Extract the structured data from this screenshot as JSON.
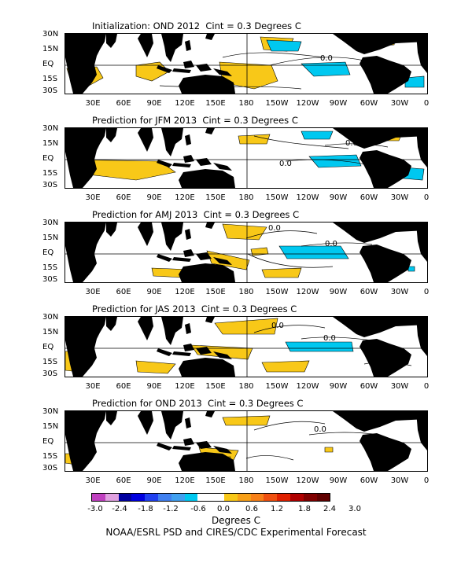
{
  "panels": [
    {
      "title": "Initialization: OND 2012  Cint = 0.3 Degrees C",
      "contour_labels": [
        "0.0"
      ],
      "variant": 0
    },
    {
      "title": "Prediction for JFM 2013  Cint = 0.3 Degrees C",
      "contour_labels": [
        "0.0",
        "0.0"
      ],
      "variant": 1
    },
    {
      "title": "Prediction for AMJ 2013  Cint = 0.3 Degrees C",
      "contour_labels": [
        "0.0",
        "0.0"
      ],
      "variant": 2
    },
    {
      "title": "Prediction for JAS 2013  Cint = 0.3 Degrees C",
      "contour_labels": [
        "0.0",
        "0.0"
      ],
      "variant": 3
    },
    {
      "title": "Prediction for OND 2013  Cint = 0.3 Degrees C",
      "contour_labels": [
        "0.0"
      ],
      "variant": 4
    }
  ],
  "lat_labels": [
    "30N",
    "15N",
    "EQ",
    "15S",
    "30S"
  ],
  "lon_labels": [
    "30E",
    "60E",
    "90E",
    "120E",
    "150E",
    "180",
    "150W",
    "120W",
    "90W",
    "60W",
    "30W",
    "0"
  ],
  "colorbar": {
    "labels": [
      "-3.0",
      "-2.4",
      "-1.8",
      "-1.2",
      "-0.6",
      "0.0",
      "0.6",
      "1.2",
      "1.8",
      "2.4",
      "3.0"
    ],
    "colors": [
      "#c040c0",
      "#e0a0e0",
      "#0000a0",
      "#0000e0",
      "#2040f0",
      "#4080f0",
      "#40a0f0",
      "#00c8f0",
      "#ffffff",
      "#ffffff",
      "#f8c818",
      "#f8a018",
      "#f88018",
      "#f05010",
      "#e02000",
      "#b00000",
      "#800000",
      "#600000"
    ],
    "unit": "Degrees C"
  },
  "credit": "NOAA/ESRL PSD and CIRES/CDC Experimental Forecast"
}
